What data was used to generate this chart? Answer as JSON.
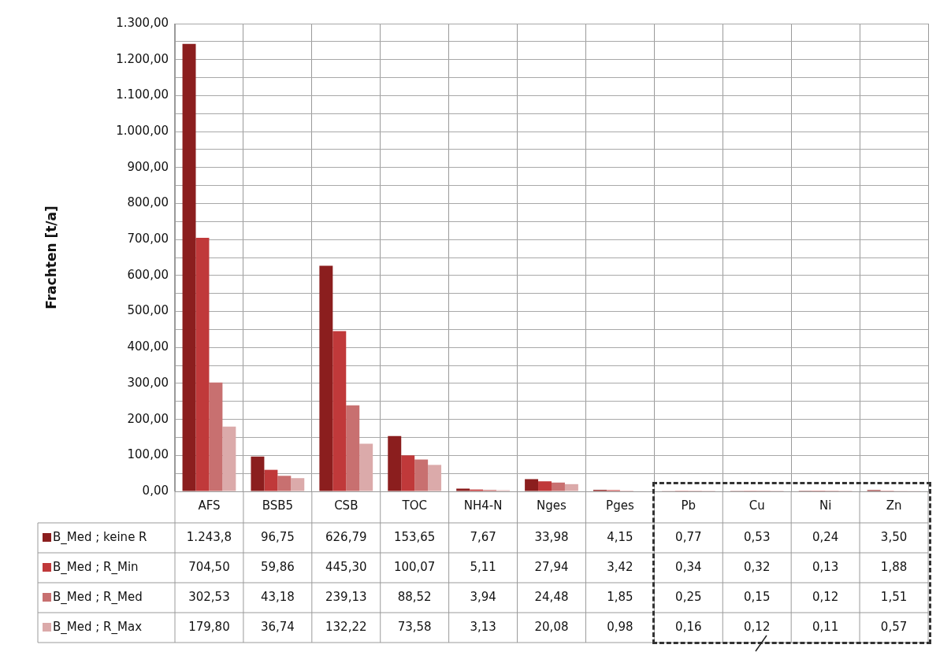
{
  "chart_data": {
    "type": "bar",
    "ylabel": "Frachten [t/a]",
    "categories": [
      "AFS",
      "BSB5",
      "CSB",
      "TOC",
      "NH4-N",
      "Nges",
      "Pges",
      "Pb",
      "Cu",
      "Ni",
      "Zn"
    ],
    "series": [
      {
        "name": "B_Med ; keine R",
        "color": "#8b1e1e",
        "values": [
          1243.8,
          96.75,
          626.79,
          153.65,
          7.67,
          33.98,
          4.15,
          0.77,
          0.53,
          0.24,
          3.5
        ],
        "value_labels": [
          "1.243,8",
          "96,75",
          "626,79",
          "153,65",
          "7,67",
          "33,98",
          "4,15",
          "0,77",
          "0,53",
          "0,24",
          "3,50"
        ]
      },
      {
        "name": "B_Med ; R_Min",
        "color": "#c0393a",
        "values": [
          704.5,
          59.86,
          445.3,
          100.07,
          5.11,
          27.94,
          3.42,
          0.34,
          0.32,
          0.13,
          1.88
        ],
        "value_labels": [
          "704,50",
          "59,86",
          "445,30",
          "100,07",
          "5,11",
          "27,94",
          "3,42",
          "0,34",
          "0,32",
          "0,13",
          "1,88"
        ]
      },
      {
        "name": "B_Med ; R_Med",
        "color": "#c87070",
        "values": [
          302.53,
          43.18,
          239.13,
          88.52,
          3.94,
          24.48,
          1.85,
          0.25,
          0.15,
          0.12,
          1.51
        ],
        "value_labels": [
          "302,53",
          "43,18",
          "239,13",
          "88,52",
          "3,94",
          "24,48",
          "1,85",
          "0,25",
          "0,15",
          "0,12",
          "1,51"
        ]
      },
      {
        "name": "B_Med ; R_Max",
        "color": "#dbaaaa",
        "values": [
          179.8,
          36.74,
          132.22,
          73.58,
          3.13,
          20.08,
          0.98,
          0.16,
          0.12,
          0.11,
          0.57
        ],
        "value_labels": [
          "179,80",
          "36,74",
          "132,22",
          "73,58",
          "3,13",
          "20,08",
          "0,98",
          "0,16",
          "0,12",
          "0,11",
          "0,57"
        ]
      }
    ],
    "ylim": [
      0,
      1300
    ],
    "yticks": [
      {
        "value": 0,
        "label": "0,00"
      },
      {
        "value": 50,
        "label": null
      },
      {
        "value": 100,
        "label": "100,00"
      },
      {
        "value": 150,
        "label": null
      },
      {
        "value": 200,
        "label": "200,00"
      },
      {
        "value": 250,
        "label": null
      },
      {
        "value": 300,
        "label": "300,00"
      },
      {
        "value": 350,
        "label": null
      },
      {
        "value": 400,
        "label": "400,00"
      },
      {
        "value": 450,
        "label": null
      },
      {
        "value": 500,
        "label": "500,00"
      },
      {
        "value": 550,
        "label": null
      },
      {
        "value": 600,
        "label": "600,00"
      },
      {
        "value": 650,
        "label": null
      },
      {
        "value": 700,
        "label": "700,00"
      },
      {
        "value": 750,
        "label": null
      },
      {
        "value": 800,
        "label": "800,00"
      },
      {
        "value": 850,
        "label": null
      },
      {
        "value": 900,
        "label": "900,00"
      },
      {
        "value": 950,
        "label": null
      },
      {
        "value": 1000,
        "label": "1.000,00"
      },
      {
        "value": 1050,
        "label": null
      },
      {
        "value": 1100,
        "label": "1.100,00"
      },
      {
        "value": 1150,
        "label": null
      },
      {
        "value": 1200,
        "label": "1.200,00"
      },
      {
        "value": 1250,
        "label": null
      },
      {
        "value": 1300,
        "label": "1.300,00"
      }
    ],
    "grid": true,
    "legend": "bottom left"
  }
}
